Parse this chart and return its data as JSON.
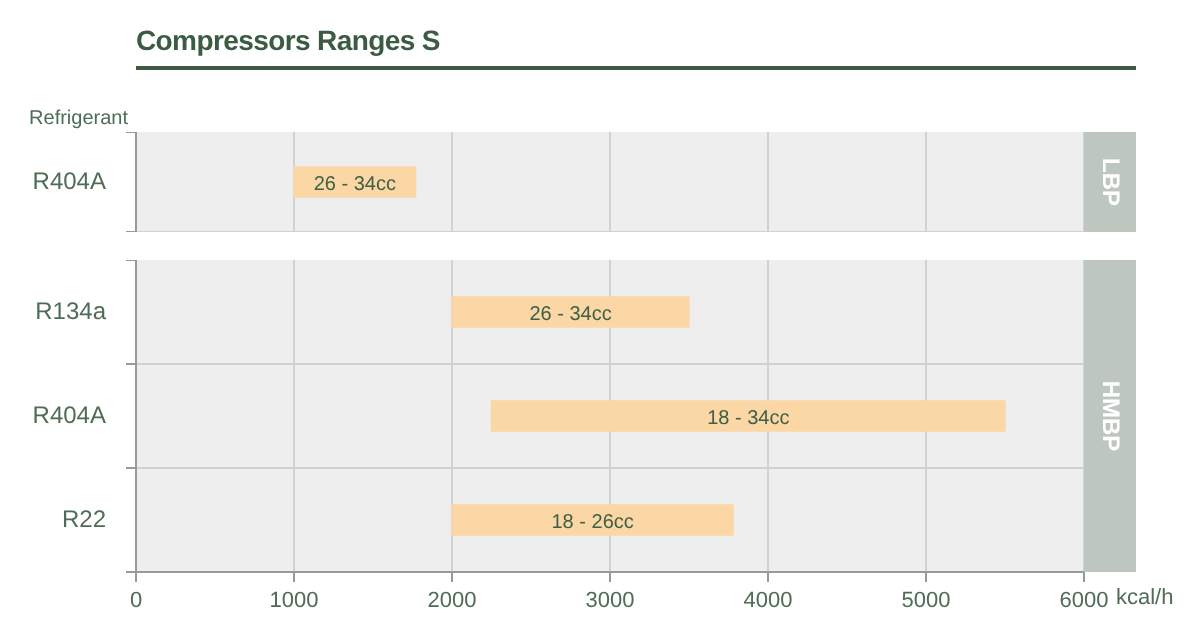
{
  "chart_data": [
    {
      "type": "bar",
      "orientation": "horizontal",
      "title": "Compressors Ranges S",
      "ylabel": "Refrigerant",
      "categories": [
        "R404A"
      ],
      "base": [
        1000
      ],
      "values": [
        770
      ],
      "color": "#fad7a5",
      "xlim": [
        0,
        6000
      ],
      "xticks": [
        0,
        1000,
        2000,
        3000,
        4000,
        5000,
        6000
      ],
      "grid": true,
      "tick_labels": "y",
      "annotations": [
        "LBP",
        "26 - 34cc"
      ]
    },
    {
      "type": "bar",
      "orientation": "horizontal",
      "xlabel": "kcal/h",
      "categories": [
        "R134a",
        "R404A",
        "R22"
      ],
      "base": [
        2000,
        2250,
        2000
      ],
      "values": [
        1500,
        3250,
        1780
      ],
      "color": "#fad7a5",
      "xlim": [
        0,
        6000
      ],
      "xticks": [
        0,
        1000,
        2000,
        3000,
        4000,
        5000,
        6000
      ],
      "grid": true,
      "annotations": [
        "HMBP",
        "26 - 34cc",
        "18 - 34cc",
        "18 - 26cc"
      ]
    }
  ]
}
